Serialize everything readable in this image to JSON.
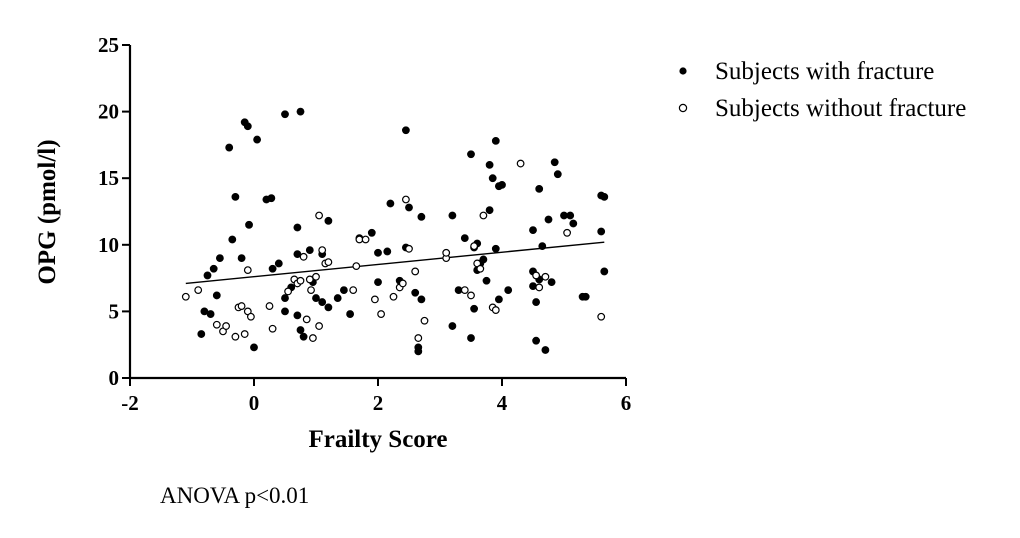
{
  "chart_data": {
    "type": "scatter",
    "title": "",
    "xlabel": "Frailty Score",
    "ylabel": "OPG (pmol/l)",
    "xlim": [
      -2,
      6
    ],
    "ylim": [
      0,
      25
    ],
    "xticks": [
      -2,
      0,
      2,
      4,
      6
    ],
    "yticks": [
      0,
      5,
      10,
      15,
      20,
      25
    ],
    "xtick_labels": [
      "-2",
      "0",
      "2",
      "4",
      "6"
    ],
    "ytick_labels": [
      "0",
      "5",
      "10",
      "15",
      "20",
      "25"
    ],
    "grid": false,
    "legend_position": "top-right",
    "series": [
      {
        "name": "Subjects with fracture",
        "marker": "filled-circle",
        "color": "#000000",
        "points": [
          [
            -0.15,
            19.2
          ],
          [
            -0.1,
            18.9
          ],
          [
            0.05,
            17.9
          ],
          [
            0.5,
            19.8
          ],
          [
            0.75,
            20.0
          ],
          [
            -0.4,
            17.3
          ],
          [
            -0.3,
            13.6
          ],
          [
            0.2,
            13.4
          ],
          [
            0.28,
            13.5
          ],
          [
            2.45,
            18.6
          ],
          [
            3.5,
            16.8
          ],
          [
            3.8,
            16.0
          ],
          [
            3.9,
            17.8
          ],
          [
            4.85,
            16.2
          ],
          [
            3.85,
            15.0
          ],
          [
            3.95,
            14.4
          ],
          [
            4.6,
            14.2
          ],
          [
            4.9,
            15.3
          ],
          [
            4.0,
            14.5
          ],
          [
            5.6,
            13.7
          ],
          [
            5.65,
            13.6
          ],
          [
            2.2,
            13.1
          ],
          [
            2.5,
            12.8
          ],
          [
            2.7,
            12.1
          ],
          [
            3.2,
            12.2
          ],
          [
            3.8,
            12.6
          ],
          [
            4.75,
            11.9
          ],
          [
            5.0,
            12.2
          ],
          [
            5.1,
            12.2
          ],
          [
            5.15,
            11.6
          ],
          [
            5.6,
            11.0
          ],
          [
            4.5,
            11.1
          ],
          [
            0.7,
            11.3
          ],
          [
            -0.35,
            10.4
          ],
          [
            -0.08,
            11.5
          ],
          [
            1.2,
            11.8
          ],
          [
            1.7,
            10.5
          ],
          [
            1.9,
            10.9
          ],
          [
            3.4,
            10.5
          ],
          [
            3.6,
            10.1
          ],
          [
            3.55,
            9.8
          ],
          [
            3.9,
            9.7
          ],
          [
            4.65,
            9.9
          ],
          [
            -0.2,
            9.0
          ],
          [
            -0.55,
            9.0
          ],
          [
            -0.65,
            8.2
          ],
          [
            -0.75,
            7.7
          ],
          [
            0.3,
            8.2
          ],
          [
            0.4,
            8.6
          ],
          [
            0.7,
            9.3
          ],
          [
            0.9,
            9.6
          ],
          [
            1.1,
            9.3
          ],
          [
            2.0,
            9.4
          ],
          [
            2.15,
            9.5
          ],
          [
            2.45,
            9.8
          ],
          [
            3.65,
            8.6
          ],
          [
            3.6,
            8.1
          ],
          [
            3.7,
            8.9
          ],
          [
            4.5,
            8.0
          ],
          [
            5.65,
            8.0
          ],
          [
            -0.8,
            5.0
          ],
          [
            -0.7,
            4.8
          ],
          [
            -0.6,
            6.2
          ],
          [
            -0.85,
            3.3
          ],
          [
            0.0,
            2.3
          ],
          [
            0.5,
            6.0
          ],
          [
            0.5,
            5.0
          ],
          [
            0.6,
            6.8
          ],
          [
            0.7,
            4.7
          ],
          [
            0.75,
            3.6
          ],
          [
            0.8,
            3.1
          ],
          [
            0.95,
            7.2
          ],
          [
            1.0,
            6.0
          ],
          [
            1.1,
            5.7
          ],
          [
            1.2,
            5.3
          ],
          [
            1.35,
            6.0
          ],
          [
            1.45,
            6.6
          ],
          [
            1.55,
            4.8
          ],
          [
            2.0,
            7.2
          ],
          [
            2.35,
            7.3
          ],
          [
            2.6,
            6.4
          ],
          [
            2.7,
            5.9
          ],
          [
            2.65,
            2.3
          ],
          [
            2.65,
            2.0
          ],
          [
            3.2,
            3.9
          ],
          [
            3.3,
            6.6
          ],
          [
            3.5,
            3.0
          ],
          [
            3.55,
            5.2
          ],
          [
            3.75,
            7.3
          ],
          [
            3.95,
            5.9
          ],
          [
            4.1,
            6.6
          ],
          [
            4.5,
            6.9
          ],
          [
            4.55,
            5.7
          ],
          [
            4.6,
            7.4
          ],
          [
            4.7,
            2.1
          ],
          [
            4.55,
            2.8
          ],
          [
            4.8,
            7.2
          ],
          [
            5.3,
            6.1
          ],
          [
            5.35,
            6.1
          ]
        ]
      },
      {
        "name": "Subjects without fracture",
        "marker": "open-circle",
        "color": "#000000",
        "points": [
          [
            -1.1,
            6.1
          ],
          [
            -0.9,
            6.6
          ],
          [
            -0.6,
            4.0
          ],
          [
            -0.5,
            3.5
          ],
          [
            -0.45,
            3.9
          ],
          [
            -0.3,
            3.1
          ],
          [
            -0.25,
            5.3
          ],
          [
            -0.2,
            5.4
          ],
          [
            -0.15,
            3.3
          ],
          [
            -0.1,
            5.0
          ],
          [
            -0.05,
            4.6
          ],
          [
            -0.1,
            8.1
          ],
          [
            0.25,
            5.4
          ],
          [
            0.3,
            3.7
          ],
          [
            0.55,
            6.5
          ],
          [
            0.65,
            7.4
          ],
          [
            0.7,
            7.1
          ],
          [
            0.75,
            7.3
          ],
          [
            0.8,
            9.1
          ],
          [
            0.85,
            4.4
          ],
          [
            0.9,
            7.4
          ],
          [
            0.92,
            6.6
          ],
          [
            0.95,
            3.0
          ],
          [
            1.0,
            7.6
          ],
          [
            1.05,
            3.9
          ],
          [
            1.05,
            12.2
          ],
          [
            1.1,
            9.6
          ],
          [
            1.15,
            8.6
          ],
          [
            1.2,
            8.7
          ],
          [
            1.6,
            6.6
          ],
          [
            1.65,
            8.4
          ],
          [
            1.7,
            10.4
          ],
          [
            1.8,
            10.4
          ],
          [
            1.95,
            5.9
          ],
          [
            2.05,
            4.8
          ],
          [
            2.25,
            6.1
          ],
          [
            2.35,
            6.8
          ],
          [
            2.4,
            7.1
          ],
          [
            2.45,
            13.4
          ],
          [
            2.5,
            9.7
          ],
          [
            2.6,
            8.0
          ],
          [
            2.65,
            3.0
          ],
          [
            2.75,
            4.3
          ],
          [
            3.1,
            9.0
          ],
          [
            3.1,
            9.4
          ],
          [
            3.4,
            6.6
          ],
          [
            3.5,
            6.2
          ],
          [
            3.55,
            9.9
          ],
          [
            3.6,
            8.6
          ],
          [
            3.65,
            8.2
          ],
          [
            3.7,
            12.2
          ],
          [
            3.85,
            5.3
          ],
          [
            3.9,
            5.1
          ],
          [
            4.3,
            16.1
          ],
          [
            4.55,
            7.7
          ],
          [
            4.6,
            6.8
          ],
          [
            4.7,
            7.6
          ],
          [
            5.05,
            10.9
          ],
          [
            5.6,
            4.6
          ]
        ]
      }
    ],
    "regression_line": {
      "from": [
        -1.1,
        7.1
      ],
      "to": [
        5.65,
        10.2
      ]
    },
    "annotations": [
      "ANOVA p<0.01"
    ]
  }
}
